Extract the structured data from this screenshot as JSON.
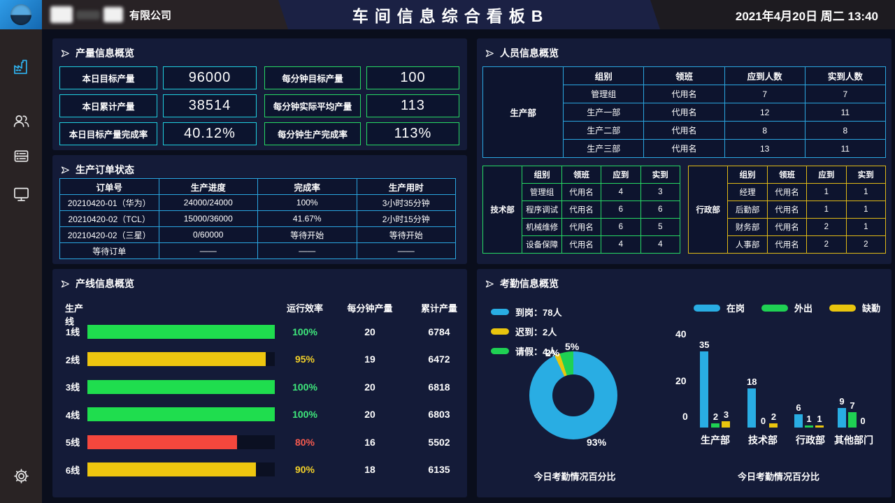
{
  "header": {
    "company_suffix": "有限公司",
    "title": "车间信息综合看板B",
    "datetime": "2021年4月20日 周二 13:40"
  },
  "sidebar": {
    "icons": [
      "factory-icon",
      "users-icon",
      "server-icon",
      "monitor-icon"
    ],
    "settings_icon": "gear-icon"
  },
  "production": {
    "title": "产量信息概览",
    "left_border": "#1fcfe0",
    "right_border": "#27d964",
    "left_stats": [
      {
        "label": "本日目标产量",
        "value": "96000"
      },
      {
        "label": "本日累计产量",
        "value": "38514"
      },
      {
        "label": "本日目标产量完成率",
        "value": "40.12%"
      }
    ],
    "right_stats": [
      {
        "label": "每分钟目标产量",
        "value": "100"
      },
      {
        "label": "每分钟实际平均产量",
        "value": "113"
      },
      {
        "label": "每分钟生产完成率",
        "value": "113%"
      }
    ]
  },
  "orders": {
    "title": "生产订单状态",
    "border": "#2aa6e0",
    "headers": [
      "订单号",
      "生产进度",
      "完成率",
      "生产用时"
    ],
    "rows": [
      [
        "20210420-01（华为）",
        "24000/24000",
        "100%",
        "3小时35分钟"
      ],
      [
        "20210420-02（TCL）",
        "15000/36000",
        "41.67%",
        "2小时15分钟"
      ],
      [
        "20210420-02（三星）",
        "0/60000",
        "等待开始",
        "等待开始"
      ],
      [
        "等待订单",
        "——",
        "——",
        "——"
      ]
    ]
  },
  "personnel": {
    "title": "人员信息概览",
    "main": {
      "dept": "生产部",
      "headers": [
        "组别",
        "领班",
        "应到人数",
        "实到人数"
      ],
      "rows": [
        [
          "管理组",
          "代用名",
          "7",
          "7"
        ],
        [
          "生产一部",
          "代用名",
          "12",
          "11"
        ],
        [
          "生产二部",
          "代用名",
          "8",
          "8"
        ],
        [
          "生产三部",
          "代用名",
          "13",
          "11"
        ]
      ]
    },
    "tech": {
      "dept": "技术部",
      "headers": [
        "组别",
        "领班",
        "应到",
        "实到"
      ],
      "rows": [
        [
          "管理组",
          "代用名",
          "4",
          "3"
        ],
        [
          "程序调试",
          "代用名",
          "6",
          "6"
        ],
        [
          "机械维修",
          "代用名",
          "6",
          "5"
        ],
        [
          "设备保障",
          "代用名",
          "4",
          "4"
        ]
      ]
    },
    "admin": {
      "dept": "行政部",
      "headers": [
        "组别",
        "领班",
        "应到",
        "实到"
      ],
      "rows": [
        [
          "经理",
          "代用名",
          "1",
          "1"
        ],
        [
          "后勤部",
          "代用名",
          "1",
          "1"
        ],
        [
          "财务部",
          "代用名",
          "2",
          "1"
        ],
        [
          "人事部",
          "代用名",
          "2",
          "2"
        ]
      ]
    }
  },
  "lines": {
    "title": "产线信息概览",
    "headers": {
      "name": "生产线",
      "eff": "运行效率",
      "per_min": "每分钟产量",
      "total": "累计产量"
    },
    "bar_colors": {
      "green": "#1fdd4e",
      "yellow": "#eec60f",
      "red": "#f5473d"
    },
    "text_colors": {
      "green": "#3fe87c",
      "yellow": "#f2d029",
      "red": "#f55a4e"
    },
    "rows": [
      {
        "name": "1线",
        "eff": "100%",
        "pct": 100,
        "status": "green",
        "per_min": "20",
        "total": "6784"
      },
      {
        "name": "2线",
        "eff": "95%",
        "pct": 95,
        "status": "yellow",
        "per_min": "19",
        "total": "6472"
      },
      {
        "name": "3线",
        "eff": "100%",
        "pct": 100,
        "status": "green",
        "per_min": "20",
        "total": "6818"
      },
      {
        "name": "4线",
        "eff": "100%",
        "pct": 100,
        "status": "green",
        "per_min": "20",
        "total": "6803"
      },
      {
        "name": "5线",
        "eff": "80%",
        "pct": 80,
        "status": "red",
        "per_min": "16",
        "total": "5502"
      },
      {
        "name": "6线",
        "eff": "90%",
        "pct": 90,
        "status": "yellow",
        "per_min": "18",
        "total": "6135"
      }
    ]
  },
  "attendance": {
    "title": "考勤信息概览",
    "donut": {
      "legend": [
        {
          "label": "到岗：78人",
          "color": "#29ade3"
        },
        {
          "label": "迟到：2人",
          "color": "#e9c50e"
        },
        {
          "label": "请假：4人",
          "color": "#1fd153"
        }
      ],
      "segments": [
        {
          "name": "到岗",
          "pct": 93,
          "color": "#29ade3"
        },
        {
          "name": "迟到",
          "pct": 2,
          "color": "#e9c50e"
        },
        {
          "name": "请假",
          "pct": 5,
          "color": "#1fd153"
        }
      ],
      "labels": {
        "late": "2%",
        "leave": "5%",
        "present": "93%"
      },
      "caption": "今日考勤情况百分比"
    },
    "bars": {
      "legend": [
        {
          "label": "在岗",
          "color": "#29ade3"
        },
        {
          "label": "外出",
          "color": "#1fd153"
        },
        {
          "label": "缺勤",
          "color": "#e9c50e"
        }
      ],
      "y_ticks": [
        "40",
        "20",
        "0"
      ],
      "categories": [
        "生产部",
        "技术部",
        "行政部",
        "其他部门"
      ],
      "series": [
        {
          "name": "在岗",
          "values": [
            35,
            18,
            6,
            9
          ]
        },
        {
          "name": "外出",
          "values": [
            2,
            0,
            1,
            7
          ]
        },
        {
          "name": "缺勤",
          "values": [
            3,
            2,
            1,
            0
          ]
        }
      ],
      "caption": "今日考勤情况百分比"
    }
  },
  "chart_data": [
    {
      "type": "pie",
      "title": "今日考勤情况百分比",
      "labels": [
        "到岗",
        "迟到",
        "请假"
      ],
      "values": [
        93,
        2,
        5
      ],
      "counts": [
        "78人",
        "2人",
        "4人"
      ],
      "legend_position": "top-left"
    },
    {
      "type": "bar",
      "title": "今日考勤情况百分比",
      "categories": [
        "生产部",
        "技术部",
        "行政部",
        "其他部门"
      ],
      "series": [
        {
          "name": "在岗",
          "values": [
            35,
            18,
            6,
            9
          ]
        },
        {
          "name": "外出",
          "values": [
            2,
            0,
            1,
            7
          ]
        },
        {
          "name": "缺勤",
          "values": [
            3,
            2,
            1,
            0
          ]
        }
      ],
      "ylim": [
        0,
        40
      ],
      "grid": false,
      "legend_position": "top"
    },
    {
      "type": "bar",
      "title": "产线信息概览 运行效率",
      "categories": [
        "1线",
        "2线",
        "3线",
        "4线",
        "5线",
        "6线"
      ],
      "values": [
        100,
        95,
        100,
        100,
        80,
        90
      ],
      "per_min": [
        20,
        19,
        20,
        20,
        16,
        18
      ],
      "totals": [
        6784,
        6472,
        6818,
        6803,
        5502,
        6135
      ],
      "xlabel": "",
      "ylabel": "运行效率 %",
      "ylim": [
        0,
        100
      ]
    }
  ]
}
